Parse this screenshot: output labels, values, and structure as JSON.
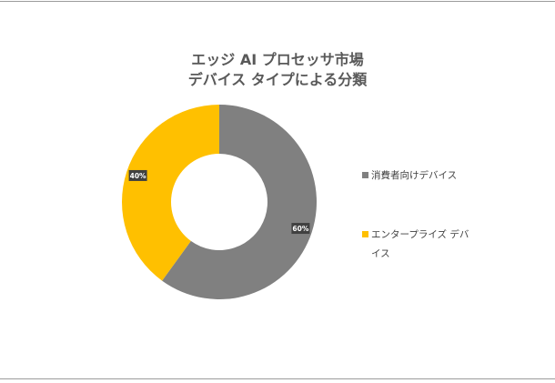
{
  "chart_data": {
    "type": "pie",
    "variant": "donut",
    "title_line1": "エッジ AI プロセッサ市場",
    "title_line2": "デバイス タイプによる分類",
    "slices": [
      {
        "label": "消費者向けデバイス",
        "value": 60,
        "value_label": "60%",
        "color": "#808080"
      },
      {
        "label": "エンタープライズ デバイス",
        "value": 40,
        "value_label": "40%",
        "color": "#ffc000"
      }
    ],
    "legend_position": "right"
  },
  "colors": {
    "label_bg": "#404040",
    "label_text": "#ffffff"
  }
}
